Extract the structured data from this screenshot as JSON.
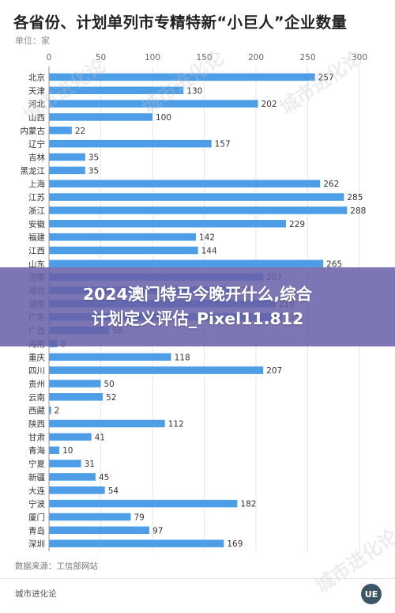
{
  "title": "各省份、计划单列市专精特新“小巨人”企业数量",
  "unit_label": "单位：家",
  "source_label": "数据来源：工信部网站",
  "brand_label": "城市进化论",
  "logo_text": "UE",
  "watermark_text": "城市进化论",
  "banner": {
    "line1": "2024澳门特马今晚开什么,综合",
    "line2": "计划定义评估_Pixel11.812"
  },
  "colors": {
    "bar": "#4d9ee6",
    "grid": "#e6e6e6",
    "banner": "#6860a8"
  },
  "chart_data": {
    "type": "bar",
    "orientation": "horizontal",
    "title": "各省份、计划单列市专精特新“小巨人”企业数量",
    "xlim": [
      0,
      300
    ],
    "xticks": [
      0,
      50,
      100,
      150,
      200,
      250,
      300
    ],
    "grid": true,
    "categories": [
      "北京",
      "天津",
      "河北",
      "山西",
      "内蒙古",
      "辽宁",
      "吉林",
      "黑龙江",
      "上海",
      "江苏",
      "浙江",
      "安徽",
      "福建",
      "江西",
      "山东",
      "河南",
      "湖北",
      "湖南",
      "广东",
      "广西",
      "海南",
      "重庆",
      "四川",
      "贵州",
      "云南",
      "西藏",
      "陕西",
      "甘肃",
      "青海",
      "宁夏",
      "新疆",
      "大连",
      "宁波",
      "厦门",
      "青岛",
      "深圳"
    ],
    "values": [
      257,
      130,
      202,
      100,
      22,
      157,
      35,
      35,
      262,
      285,
      288,
      229,
      142,
      144,
      265,
      207,
      178,
      219,
      225,
      58,
      8,
      118,
      207,
      50,
      52,
      2,
      112,
      41,
      10,
      31,
      45,
      54,
      182,
      79,
      97,
      169
    ]
  }
}
